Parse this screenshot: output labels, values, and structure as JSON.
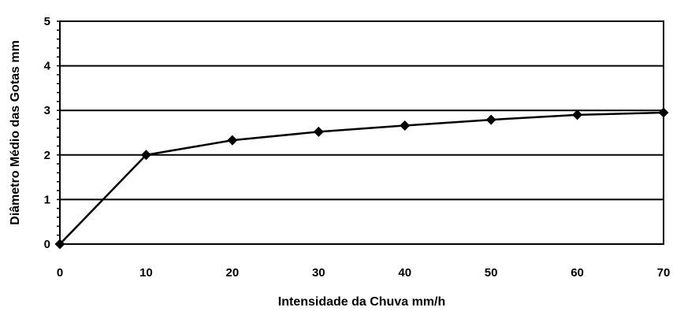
{
  "chart_data": {
    "type": "line",
    "title": "",
    "xlabel": "Intensidade da Chuva mm/h",
    "ylabel": "Diâmetro Médio das Gotas mm",
    "xlim": [
      0,
      70
    ],
    "ylim": [
      0,
      5
    ],
    "x_ticks": [
      "0",
      "10",
      "20",
      "30",
      "40",
      "50",
      "60",
      "70"
    ],
    "y_ticks": [
      "0",
      "1",
      "2",
      "3",
      "4",
      "5"
    ],
    "grid": "horizontal",
    "legend": "none",
    "series": [
      {
        "marker": "diamond",
        "color": "#000000",
        "x": [
          0,
          10,
          20,
          30,
          40,
          50,
          60,
          70
        ],
        "y": [
          0,
          2.0,
          2.33,
          2.52,
          2.66,
          2.79,
          2.9,
          2.95
        ]
      }
    ]
  }
}
